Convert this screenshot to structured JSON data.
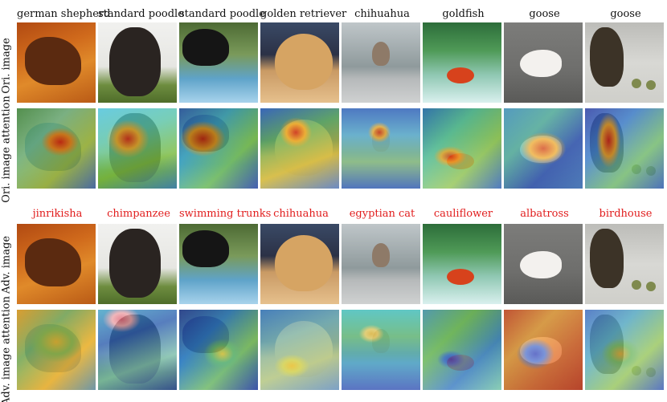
{
  "row_labels": {
    "ori_image": "Ori. image",
    "ori_attention": "Ori. image attention",
    "adv_image": "Adv. image",
    "adv_attention": "Adv. image attention"
  },
  "original_predictions": [
    "german shepherd",
    "standard poodle",
    "standard poodle",
    "golden retriever",
    "chihuahua",
    "goldfish",
    "goose",
    "goose"
  ],
  "adversarial_predictions": [
    "jinrikisha",
    "chimpanzee",
    "swimming trunks",
    "chihuahua",
    "egyptian cat",
    "cauliflower",
    "albatross",
    "birdhouse"
  ],
  "colors": {
    "adversarial_label": "#e11d1d",
    "original_label": "#111111"
  }
}
